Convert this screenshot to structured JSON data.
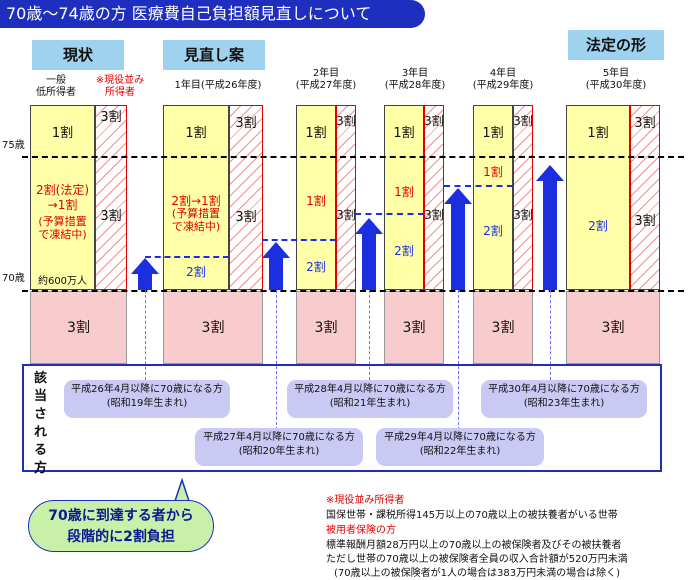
{
  "title": "70歳〜74歳の方 医療費自己負担額見直しについて",
  "headers": {
    "current": "現状",
    "proposal": "見直し案",
    "legal": "法定の形"
  },
  "col0": {
    "general": "一般\n低所得者",
    "note": "※現役並み\n所得者"
  },
  "years": [
    {
      "label": "1年目(平成26年度)"
    },
    {
      "label": "2年目\n(平成27年度)"
    },
    {
      "label": "3年目\n(平成28年度)"
    },
    {
      "label": "4年目\n(平成29年度)"
    },
    {
      "label": "5年目\n(平成30年度)"
    }
  ],
  "age_labels": {
    "a75": "75歳",
    "a70": "70歳"
  },
  "cells": {
    "one": "1割",
    "three": "3割",
    "two": "2割",
    "cur_mid": "2割(法定)\n→1割",
    "cur_note": "(予算措置\nで凍結中)",
    "cur_pop": "約600万人",
    "y1_mid": "2割→1割",
    "y1_note": "(予算措置\nで凍結中)"
  },
  "side_label": "該当される方",
  "bubbles": [
    "平成26年4月以降に70歳になる方\n(昭和19年生まれ)",
    "平成27年4月以降に70歳になる方\n(昭和20年生まれ)",
    "平成28年4月以降に70歳になる方\n(昭和21年生まれ)",
    "平成29年4月以降に70歳になる方\n(昭和22年生まれ)",
    "平成30年4月以降に70歳になる方\n(昭和23年生まれ)"
  ],
  "callout": "70歳に到達する者から\n段階的に2割負担",
  "notes": {
    "h1": "※現役並み所得者",
    "l1": "国保世帯・課税所得145万以上の70歳以上の被扶養者がいる世帯",
    "h2": "被用者保険の方",
    "l2": "標準報酬月額28万円以上の70歳以上の被保険者及びその被扶養者",
    "l3": "ただし世帯の70歳以上の被保険者全員の収入合計額が520万円未満",
    "l4": "(70歳以上の被保険者が1人の場合は383万円未満の場合は除く)"
  },
  "colors": {
    "title": "#1e2fc0",
    "header": "#9fd2ef",
    "yellow": "#ffffa8",
    "pink": "#f8cccc",
    "accent": "#1b2ee0",
    "red": "#e00000",
    "bubble": "#c9c9f4",
    "callout": "#c8f0a8"
  }
}
